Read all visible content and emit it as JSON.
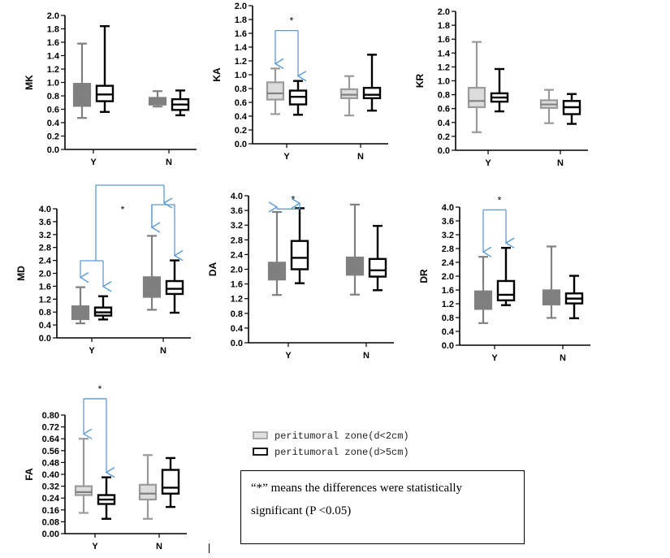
{
  "legend": {
    "near_label": "peritumoral zone(d<2cm)",
    "far_label": "peritumoral zone(d>5cm)",
    "near_color": "#c0c0c0",
    "far_color": "#000000"
  },
  "note": {
    "text": "“*” means the differences were statistically significant (P <0.05)"
  },
  "colors": {
    "near_stroke": "#808080",
    "far_stroke": "#000000",
    "bracket": "#5b9bd5"
  },
  "chart_data": [
    {
      "type": "box",
      "title": "MK",
      "ylim": [
        0,
        2.0
      ],
      "tick_step": 0.2,
      "tick_decimals": 1,
      "categories": [
        "Y",
        "N"
      ],
      "series": [
        {
          "name": "peritumoral zone(d<2cm)",
          "style": "near-dark",
          "boxes": [
            [
              0.47,
              0.65,
              0.78,
              0.98,
              1.58
            ],
            [
              0.64,
              0.67,
              0.73,
              0.77,
              0.87
            ]
          ]
        },
        {
          "name": "peritumoral zone(d>5cm)",
          "style": "far",
          "boxes": [
            [
              0.56,
              0.72,
              0.82,
              0.95,
              1.84
            ],
            [
              0.51,
              0.59,
              0.67,
              0.75,
              0.88
            ]
          ]
        }
      ],
      "significance": []
    },
    {
      "type": "box",
      "title": "KA",
      "ylim": [
        0,
        2.0
      ],
      "tick_step": 0.2,
      "tick_decimals": 1,
      "categories": [
        "Y",
        "N"
      ],
      "series": [
        {
          "name": "peritumoral zone(d<2cm)",
          "style": "near-light",
          "boxes": [
            [
              0.43,
              0.64,
              0.73,
              0.89,
              1.09
            ],
            [
              0.41,
              0.66,
              0.71,
              0.79,
              0.98
            ]
          ]
        },
        {
          "name": "peritumoral zone(d>5cm)",
          "style": "far",
          "boxes": [
            [
              0.42,
              0.57,
              0.68,
              0.77,
              0.91
            ],
            [
              0.48,
              0.66,
              0.71,
              0.81,
              1.29
            ]
          ]
        }
      ],
      "significance": [
        {
          "label": "*",
          "category": 0,
          "level": 1.64
        }
      ]
    },
    {
      "type": "box",
      "title": "KR",
      "ylim": [
        0,
        2.0
      ],
      "tick_step": 0.2,
      "tick_decimals": 1,
      "categories": [
        "Y",
        "N"
      ],
      "series": [
        {
          "name": "peritumoral zone(d<2cm)",
          "style": "near-light",
          "boxes": [
            [
              0.26,
              0.62,
              0.71,
              0.9,
              1.56
            ],
            [
              0.39,
              0.61,
              0.66,
              0.72,
              0.87
            ]
          ]
        },
        {
          "name": "peritumoral zone(d>5cm)",
          "style": "far",
          "boxes": [
            [
              0.56,
              0.7,
              0.76,
              0.82,
              1.17
            ],
            [
              0.38,
              0.52,
              0.62,
              0.71,
              0.81
            ]
          ]
        }
      ],
      "significance": []
    },
    {
      "type": "box",
      "title": "MD",
      "ylim": [
        0,
        4.0
      ],
      "tick_step": 0.4,
      "tick_decimals": 1,
      "categories": [
        "Y",
        "N"
      ],
      "series": [
        {
          "name": "peritumoral zone(d<2cm)",
          "style": "near-dark",
          "boxes": [
            [
              0.45,
              0.58,
              0.78,
              0.98,
              1.57
            ],
            [
              0.87,
              1.27,
              1.49,
              1.88,
              3.16
            ]
          ]
        },
        {
          "name": "peritumoral zone(d>5cm)",
          "style": "far",
          "boxes": [
            [
              0.57,
              0.69,
              0.79,
              0.94,
              1.29
            ],
            [
              0.78,
              1.36,
              1.52,
              1.76,
              2.4
            ]
          ]
        }
      ],
      "significance": [
        {
          "label": "*",
          "category": "between",
          "level": 2.2
        }
      ]
    },
    {
      "type": "box",
      "title": "DA",
      "ylim": [
        0,
        4.0
      ],
      "tick_step": 0.4,
      "tick_decimals": 1,
      "categories": [
        "Y",
        "N"
      ],
      "series": [
        {
          "name": "peritumoral zone(d<2cm)",
          "style": "near-dark",
          "boxes": [
            [
              1.3,
              1.72,
              1.85,
              2.18,
              3.56
            ],
            [
              1.31,
              1.85,
              2.09,
              2.32,
              3.76
            ]
          ]
        },
        {
          "name": "peritumoral zone(d>5cm)",
          "style": "far",
          "boxes": [
            [
              1.62,
              2.0,
              2.31,
              2.77,
              3.66
            ],
            [
              1.43,
              1.8,
              1.97,
              2.28,
              3.18
            ]
          ]
        }
      ],
      "significance": [
        {
          "label": "*",
          "category": 0,
          "level": 3.64
        }
      ]
    },
    {
      "type": "box",
      "title": "DR",
      "ylim": [
        0,
        4.0
      ],
      "tick_step": 0.4,
      "tick_decimals": 1,
      "categories": [
        "Y",
        "N"
      ],
      "series": [
        {
          "name": "peritumoral zone(d<2cm)",
          "style": "near-dark",
          "boxes": [
            [
              0.64,
              1.05,
              1.3,
              1.56,
              2.56
            ],
            [
              0.79,
              1.18,
              1.36,
              1.59,
              2.86
            ]
          ]
        },
        {
          "name": "peritumoral zone(d>5cm)",
          "style": "far",
          "boxes": [
            [
              1.16,
              1.3,
              1.46,
              1.86,
              2.82
            ],
            [
              0.78,
              1.21,
              1.35,
              1.5,
              2.01
            ]
          ]
        }
      ],
      "significance": [
        {
          "label": "*",
          "category": 0,
          "level": 3.92
        }
      ]
    },
    {
      "type": "box",
      "title": "FA",
      "ylim": [
        0,
        0.8
      ],
      "tick_step": 0.08,
      "tick_decimals": 2,
      "categories": [
        "Y",
        "N"
      ],
      "series": [
        {
          "name": "peritumoral zone(d<2cm)",
          "style": "near-light",
          "boxes": [
            [
              0.14,
              0.26,
              0.28,
              0.32,
              0.64
            ],
            [
              0.1,
              0.23,
              0.27,
              0.33,
              0.53
            ]
          ]
        },
        {
          "name": "peritumoral zone(d>5cm)",
          "style": "far",
          "boxes": [
            [
              0.1,
              0.2,
              0.23,
              0.26,
              0.38
            ],
            [
              0.18,
              0.27,
              0.31,
              0.43,
              0.51
            ]
          ]
        }
      ],
      "significance": [
        {
          "label": "*",
          "category": 0,
          "level": 0.91
        }
      ]
    }
  ]
}
